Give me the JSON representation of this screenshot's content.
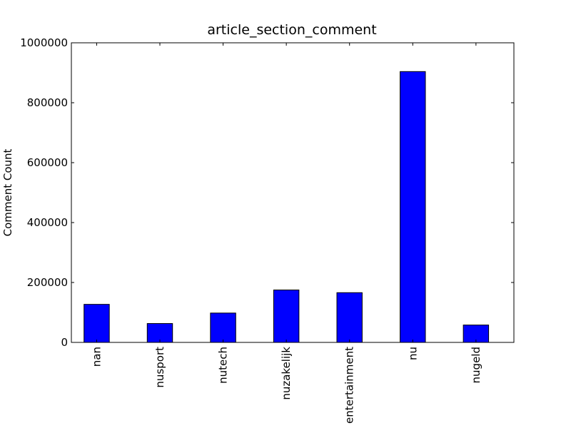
{
  "chart_data": {
    "type": "bar",
    "title": "article_section_comment",
    "xlabel": "",
    "ylabel": "Comment Count",
    "categories": [
      "nan",
      "nusport",
      "nutech",
      "nuzakelijk",
      "entertainment",
      "nu",
      "nugeld"
    ],
    "values": [
      127000,
      63000,
      98000,
      175000,
      166000,
      904000,
      58000
    ],
    "ylim": [
      0,
      1000000
    ],
    "yticks": [
      0,
      200000,
      400000,
      600000,
      800000,
      1000000
    ],
    "ytick_labels": [
      "0",
      "200000",
      "400000",
      "600000",
      "800000",
      "1000000"
    ],
    "grid": false,
    "legend": "none",
    "bar_color": "#0000ff",
    "edge_color": "#000000"
  }
}
